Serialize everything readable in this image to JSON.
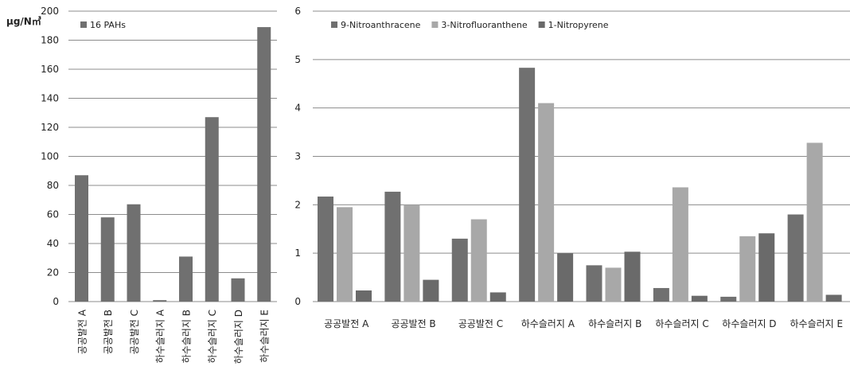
{
  "chart_data": [
    {
      "type": "bar",
      "ylabel": "μg/N㎥",
      "ylim": [
        0,
        200
      ],
      "yticks": [
        0,
        20,
        40,
        60,
        80,
        100,
        120,
        140,
        160,
        180,
        200
      ],
      "grid": true,
      "legend_position": "top-left",
      "categories": [
        "공공발전 A",
        "공공발전 B",
        "공공발전 C",
        "하수슬러지 A",
        "하수슬러지 B",
        "하수슬러지 C",
        "하수슬러지 D",
        "하수슬러지 E"
      ],
      "series": [
        {
          "name": "16 PAHs",
          "color": "#707070",
          "values": [
            87,
            58,
            67,
            1,
            31,
            127,
            16,
            189
          ]
        }
      ]
    },
    {
      "type": "bar",
      "ylim": [
        0,
        6
      ],
      "yticks": [
        0,
        1,
        2,
        3,
        4,
        5,
        6
      ],
      "grid": true,
      "legend_position": "top",
      "categories": [
        "공공발전 A",
        "공공발전 B",
        "공공발전 C",
        "하수슬러지 A",
        "하수슬러지 B",
        "하수슬러지 C",
        "하수슬러지 D",
        "하수슬러지 E"
      ],
      "series": [
        {
          "name": "9-Nitroanthracene",
          "color": "#707070",
          "values": [
            2.17,
            2.27,
            1.3,
            4.83,
            0.75,
            0.28,
            0.1,
            1.8
          ]
        },
        {
          "name": "3-Nitrofluoranthene",
          "color": "#a8a8a8",
          "values": [
            1.95,
            2.0,
            1.7,
            4.1,
            0.7,
            2.36,
            1.35,
            3.28
          ]
        },
        {
          "name": "1-Nitropyrene",
          "color": "#6a6a6a",
          "values": [
            0.23,
            0.45,
            0.19,
            1.0,
            1.03,
            0.12,
            1.41,
            0.14
          ]
        }
      ]
    }
  ]
}
